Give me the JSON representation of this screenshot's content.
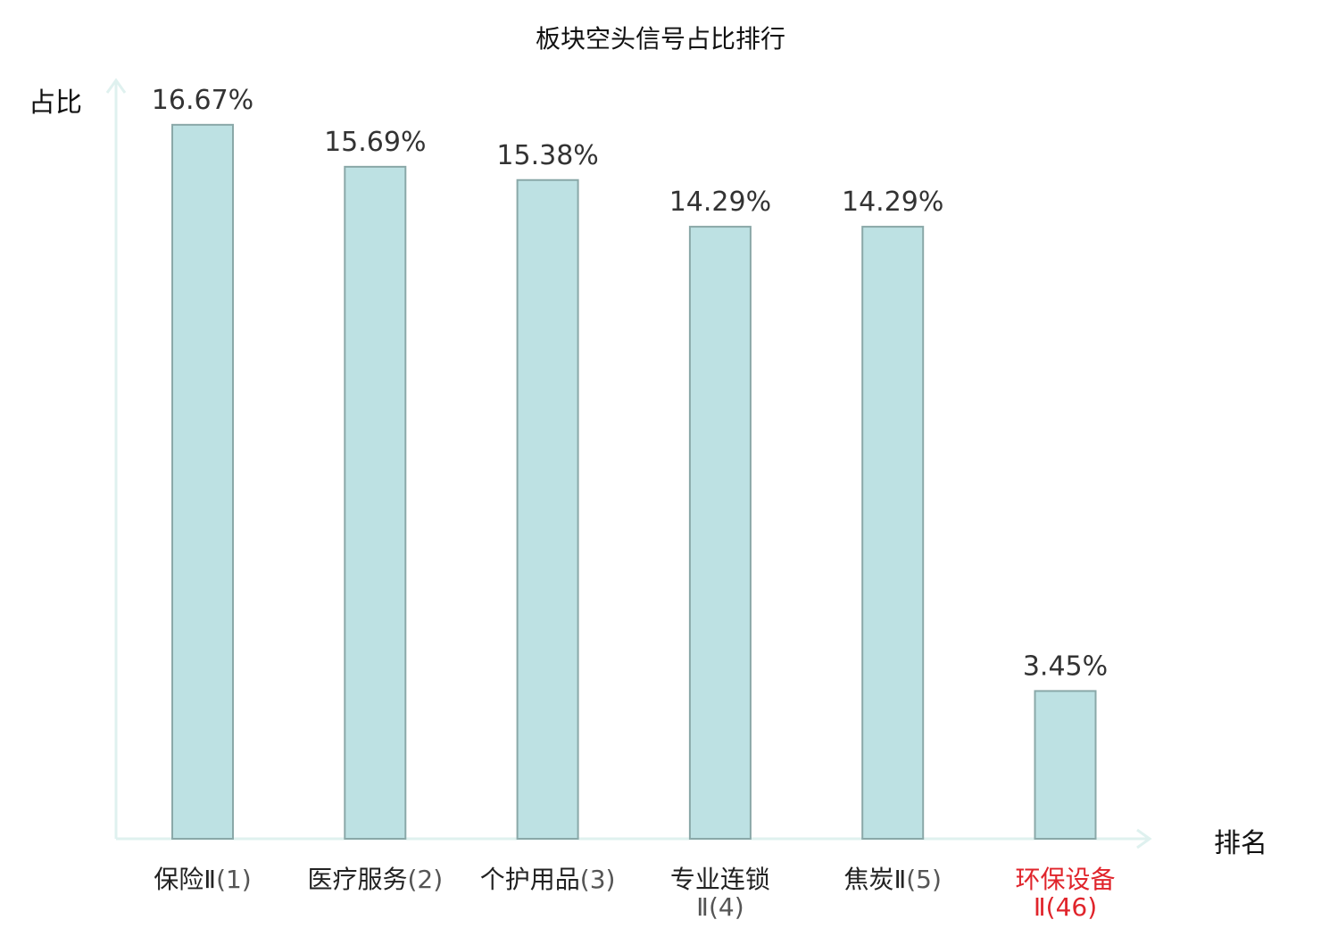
{
  "chart_data": {
    "type": "bar",
    "title": "板块空头信号占比排行",
    "ylabel": "占比",
    "xlabel": "排名",
    "ylim": [
      0,
      17.5
    ],
    "grid": false,
    "categories": [
      {
        "name": "保险Ⅱ",
        "rank": "(1)",
        "highlight": false
      },
      {
        "name": "医疗服务",
        "rank": "(2)",
        "highlight": false
      },
      {
        "name": "个护用品",
        "rank": "(3)",
        "highlight": false
      },
      {
        "name": "专业连锁Ⅱ",
        "rank": "(4)",
        "highlight": false
      },
      {
        "name": "焦炭Ⅱ",
        "rank": "(5)",
        "highlight": false
      },
      {
        "name": "环保设备Ⅱ",
        "rank": "(46)",
        "highlight": true
      }
    ],
    "values": [
      16.67,
      15.69,
      15.38,
      14.29,
      14.29,
      3.45
    ],
    "value_labels": [
      "16.67%",
      "15.69%",
      "15.38%",
      "14.29%",
      "14.29%",
      "3.45%"
    ],
    "colors": {
      "bar_fill": "#bde1e3",
      "bar_stroke": "#8aa8a8",
      "axis": "#dff1ef",
      "highlight": "#e0242b"
    }
  }
}
